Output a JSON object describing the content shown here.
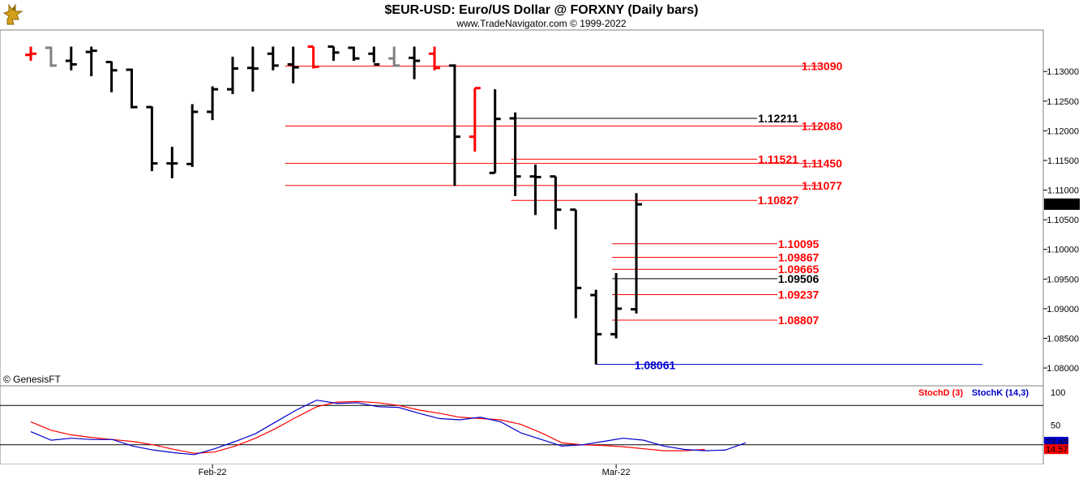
{
  "header": {
    "title": "$EUR-USD:  Euro/US Dollar @ FORXNY  (Daily bars)",
    "subtitle": "www.TradeNavigator.com © 1999-2022",
    "credit": "© GenesisFT"
  },
  "colors": {
    "bar": "#000000",
    "bar_up_red": "#ff0000",
    "bar_grey": "#808080",
    "level_red": "#ff0000",
    "level_black": "#000000",
    "low_blue": "#0000cc",
    "stoch_d": "#ff0000",
    "stoch_k": "#0000cc",
    "last_price_bg": "#000000"
  },
  "icons": {
    "logo": "gold-dragon-logo-icon"
  },
  "chart_data": [
    {
      "type": "ohlc",
      "title": "$EUR-USD:  Euro/US Dollar @ FORXNY  (Daily bars)",
      "ylim": [
        1.077,
        1.137
      ],
      "y_ticks": [
        "1.13000",
        "1.12500",
        "1.12000",
        "1.11500",
        "1.11000",
        "1.10500",
        "1.10000",
        "1.09500",
        "1.09000",
        "1.08500",
        "1.08000"
      ],
      "x_tick_labels": [
        {
          "label": "Feb-22",
          "bar": 9
        },
        {
          "label": "Mar-22",
          "bar": 29
        }
      ],
      "last_price": "1.10763",
      "bars": [
        {
          "o": 1.1328,
          "h": 1.1342,
          "l": 1.1318,
          "c": 1.133,
          "color": "red"
        },
        {
          "o": 1.134,
          "h": 1.1342,
          "l": 1.1308,
          "c": 1.131,
          "color": "grey"
        },
        {
          "o": 1.1318,
          "h": 1.1342,
          "l": 1.1302,
          "c": 1.1312,
          "color": "black"
        },
        {
          "o": 1.1333,
          "h": 1.1342,
          "l": 1.1292,
          "c": 1.1335,
          "color": "black"
        },
        {
          "o": 1.1316,
          "h": 1.1317,
          "l": 1.1265,
          "c": 1.1302,
          "color": "black"
        },
        {
          "o": 1.1303,
          "h": 1.1305,
          "l": 1.1238,
          "c": 1.124,
          "color": "black"
        },
        {
          "o": 1.124,
          "h": 1.1241,
          "l": 1.1132,
          "c": 1.1145,
          "color": "black"
        },
        {
          "o": 1.1145,
          "h": 1.1173,
          "l": 1.112,
          "c": 1.1145,
          "color": "black"
        },
        {
          "o": 1.1144,
          "h": 1.1245,
          "l": 1.1139,
          "c": 1.1232,
          "color": "black"
        },
        {
          "o": 1.1232,
          "h": 1.1275,
          "l": 1.1218,
          "c": 1.127,
          "color": "black"
        },
        {
          "o": 1.127,
          "h": 1.1325,
          "l": 1.1262,
          "c": 1.1305,
          "color": "black"
        },
        {
          "o": 1.1306,
          "h": 1.1342,
          "l": 1.1266,
          "c": 1.1305,
          "color": "black"
        },
        {
          "o": 1.133,
          "h": 1.1342,
          "l": 1.1302,
          "c": 1.131,
          "color": "black"
        },
        {
          "o": 1.1312,
          "h": 1.1342,
          "l": 1.128,
          "c": 1.1307,
          "color": "black"
        },
        {
          "o": 1.1342,
          "h": 1.1342,
          "l": 1.1305,
          "c": 1.1308,
          "color": "red"
        },
        {
          "o": 1.1342,
          "h": 1.1342,
          "l": 1.1318,
          "c": 1.1332,
          "color": "black"
        },
        {
          "o": 1.134,
          "h": 1.1342,
          "l": 1.1318,
          "c": 1.1322,
          "color": "black"
        },
        {
          "o": 1.133,
          "h": 1.1342,
          "l": 1.1315,
          "c": 1.1312,
          "color": "black"
        },
        {
          "o": 1.1322,
          "h": 1.1342,
          "l": 1.1308,
          "c": 1.131,
          "color": "grey"
        },
        {
          "o": 1.1323,
          "h": 1.1342,
          "l": 1.1287,
          "c": 1.1318,
          "color": "black"
        },
        {
          "o": 1.133,
          "h": 1.1342,
          "l": 1.1302,
          "c": 1.1306,
          "color": "red"
        },
        {
          "o": 1.131,
          "h": 1.1312,
          "l": 1.1107,
          "c": 1.119,
          "color": "black"
        },
        {
          "o": 1.119,
          "h": 1.1272,
          "l": 1.1165,
          "c": 1.1272,
          "color": "red"
        },
        {
          "o": 1.1129,
          "h": 1.127,
          "l": 1.1129,
          "c": 1.122,
          "color": "black"
        },
        {
          "o": 1.1221,
          "h": 1.1231,
          "l": 1.109,
          "c": 1.1123,
          "color": "black"
        },
        {
          "o": 1.1123,
          "h": 1.1143,
          "l": 1.1058,
          "c": 1.1122,
          "color": "black"
        },
        {
          "o": 1.1123,
          "h": 1.1123,
          "l": 1.1034,
          "c": 1.1067,
          "color": "black"
        },
        {
          "o": 1.1067,
          "h": 1.1067,
          "l": 1.0884,
          "c": 1.0935,
          "color": "black"
        },
        {
          "o": 1.0923,
          "h": 1.0932,
          "l": 1.0806,
          "c": 1.0857,
          "color": "black"
        },
        {
          "o": 1.0857,
          "h": 1.096,
          "l": 1.085,
          "c": 1.09,
          "color": "black"
        },
        {
          "o": 1.0899,
          "h": 1.1095,
          "l": 1.0892,
          "c": 1.1076,
          "color": "black"
        }
      ],
      "levels": [
        {
          "value": 1.1309,
          "label": "1.13090",
          "color": "red",
          "from_bar": 12.6,
          "label_col": 2
        },
        {
          "value": 1.1208,
          "label": "1.12080",
          "color": "red",
          "from_bar": 12.6,
          "label_col": 2
        },
        {
          "value": 1.1145,
          "label": "1.11450",
          "color": "red",
          "from_bar": 12.6,
          "label_col": 2
        },
        {
          "value": 1.11077,
          "label": "1.11077",
          "color": "red",
          "from_bar": 12.6,
          "label_col": 2
        },
        {
          "value": 1.12211,
          "label": "1.12211",
          "color": "black",
          "from_bar": 23.8,
          "label_col": 1
        },
        {
          "value": 1.11521,
          "label": "1.11521",
          "color": "red",
          "from_bar": 23.8,
          "label_col": 1
        },
        {
          "value": 1.10827,
          "label": "1.10827",
          "color": "red",
          "from_bar": 23.8,
          "label_col": 1
        },
        {
          "value": 1.10095,
          "label": "1.10095",
          "color": "red",
          "from_bar": 28.8,
          "label_col": 0
        },
        {
          "value": 1.09867,
          "label": "1.09867",
          "color": "red",
          "from_bar": 28.8,
          "label_col": 0
        },
        {
          "value": 1.09665,
          "label": "1.09665",
          "color": "red",
          "from_bar": 28.8,
          "label_col": 0
        },
        {
          "value": 1.09506,
          "label": "1.09506",
          "color": "black",
          "from_bar": 28.8,
          "label_col": 0
        },
        {
          "value": 1.09237,
          "label": "1.09237",
          "color": "red",
          "from_bar": 28.8,
          "label_col": 0
        },
        {
          "value": 1.08807,
          "label": "1.08807",
          "color": "red",
          "from_bar": 28.8,
          "label_col": 0
        }
      ],
      "low_marker": {
        "value": 1.08061,
        "label": "1.08061",
        "bar": 28
      }
    },
    {
      "type": "line",
      "ylim": [
        0,
        100
      ],
      "y_ticks": [
        "100",
        "50"
      ],
      "reference_lines": [
        80,
        20
      ],
      "last_values": [
        "23.48",
        "14.57"
      ],
      "series": [
        {
          "name": "StochD (3)",
          "color": "red",
          "values": [
            55,
            42,
            35,
            31,
            28,
            25,
            20,
            13,
            7,
            9,
            18,
            30,
            45,
            62,
            78,
            85,
            86,
            84,
            80,
            73,
            68,
            62,
            60,
            58,
            51,
            38,
            23,
            20,
            19,
            17,
            14,
            11,
            11,
            13
          ]
        },
        {
          "name": "StochK (14,3)",
          "color": "blue",
          "values": [
            40,
            27,
            30,
            28,
            28,
            18,
            12,
            8,
            5,
            14,
            25,
            37,
            55,
            73,
            88,
            83,
            84,
            78,
            77,
            68,
            60,
            58,
            62,
            55,
            38,
            28,
            18,
            20,
            25,
            30,
            27,
            18,
            13,
            11,
            12,
            23
          ]
        }
      ]
    }
  ]
}
